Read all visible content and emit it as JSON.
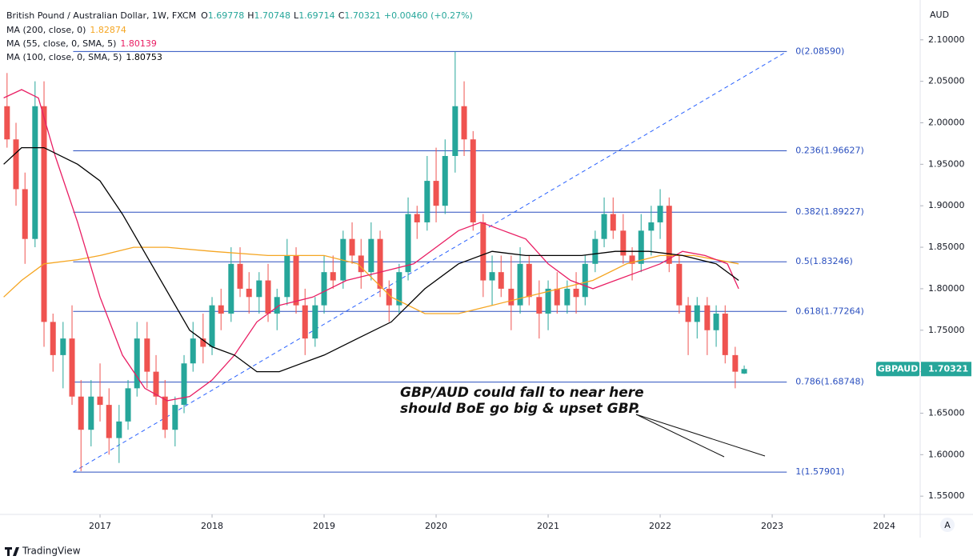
{
  "header": {
    "symbol": "British Pound / Australian Dollar, 1W, FXCM",
    "ohlc_letters": [
      "O",
      "H",
      "L",
      "C"
    ],
    "change": "+0.00460 (+0.27%)",
    "currency": "AUD"
  },
  "chart_data": {
    "type": "candlestick",
    "up_color": "#26a69a",
    "down_color": "#ef5350",
    "xlim": [
      2016.107,
      2024.321
    ],
    "xticks": [
      2017,
      2018,
      2019,
      2020,
      2021,
      2022,
      2023,
      2024
    ],
    "ylim": [
      1.528,
      2.148
    ],
    "yticks": [
      {
        "value": 1.55,
        "label": "1.55000"
      },
      {
        "value": 1.6,
        "label": "1.60000"
      },
      {
        "value": 1.65,
        "label": "1.65000"
      },
      {
        "value": 1.7,
        "label": "1.70000"
      },
      {
        "value": 1.75,
        "label": "1.75000"
      },
      {
        "value": 1.8,
        "label": "1.80000"
      },
      {
        "value": 1.85,
        "label": "1.85000"
      },
      {
        "value": 1.9,
        "label": "1.90000"
      },
      {
        "value": 1.95,
        "label": "1.95000"
      },
      {
        "value": 2.0,
        "label": "2.00000"
      },
      {
        "value": 2.05,
        "label": "2.05000"
      },
      {
        "value": 2.1,
        "label": "2.10000"
      }
    ],
    "grid": false,
    "x": [
      2016.17,
      2016.25,
      2016.33,
      2016.42,
      2016.5,
      2016.58,
      2016.67,
      2016.75,
      2016.83,
      2016.92,
      2017.0,
      2017.08,
      2017.17,
      2017.25,
      2017.33,
      2017.42,
      2017.5,
      2017.58,
      2017.67,
      2017.75,
      2017.83,
      2017.92,
      2018.0,
      2018.08,
      2018.17,
      2018.25,
      2018.33,
      2018.42,
      2018.5,
      2018.58,
      2018.67,
      2018.75,
      2018.83,
      2018.92,
      2019.0,
      2019.08,
      2019.17,
      2019.25,
      2019.33,
      2019.42,
      2019.5,
      2019.58,
      2019.67,
      2019.75,
      2019.83,
      2019.92,
      2020.0,
      2020.08,
      2020.17,
      2020.25,
      2020.33,
      2020.42,
      2020.5,
      2020.58,
      2020.67,
      2020.75,
      2020.83,
      2020.92,
      2021.0,
      2021.08,
      2021.17,
      2021.25,
      2021.33,
      2021.42,
      2021.5,
      2021.58,
      2021.67,
      2021.75,
      2021.83,
      2021.92,
      2022.0,
      2022.08,
      2022.17,
      2022.25,
      2022.33,
      2022.42,
      2022.5,
      2022.58,
      2022.67,
      2022.75
    ],
    "open": [
      2.02,
      1.98,
      1.92,
      1.86,
      2.02,
      1.76,
      1.72,
      1.74,
      1.67,
      1.63,
      1.67,
      1.66,
      1.62,
      1.64,
      1.68,
      1.74,
      1.7,
      1.67,
      1.63,
      1.66,
      1.71,
      1.74,
      1.73,
      1.78,
      1.77,
      1.83,
      1.8,
      1.79,
      1.81,
      1.77,
      1.79,
      1.84,
      1.78,
      1.74,
      1.78,
      1.82,
      1.81,
      1.86,
      1.84,
      1.82,
      1.86,
      1.8,
      1.78,
      1.82,
      1.89,
      1.88,
      1.93,
      1.9,
      1.96,
      2.02,
      1.98,
      1.88,
      1.81,
      1.82,
      1.8,
      1.78,
      1.83,
      1.79,
      1.77,
      1.8,
      1.78,
      1.8,
      1.79,
      1.83,
      1.86,
      1.89,
      1.87,
      1.84,
      1.83,
      1.87,
      1.88,
      1.9,
      1.83,
      1.78,
      1.76,
      1.78,
      1.75,
      1.77,
      1.72,
      1.69778
    ],
    "high": [
      2.06,
      2.0,
      1.94,
      2.05,
      2.05,
      1.77,
      1.76,
      1.78,
      1.69,
      1.69,
      1.71,
      1.68,
      1.66,
      1.69,
      1.76,
      1.76,
      1.72,
      1.69,
      1.67,
      1.72,
      1.76,
      1.77,
      1.79,
      1.8,
      1.85,
      1.85,
      1.82,
      1.82,
      1.83,
      1.8,
      1.86,
      1.85,
      1.8,
      1.79,
      1.84,
      1.84,
      1.87,
      1.88,
      1.86,
      1.88,
      1.87,
      1.81,
      1.83,
      1.91,
      1.9,
      1.96,
      1.97,
      1.98,
      2.0859,
      2.05,
      1.99,
      1.89,
      1.84,
      1.84,
      1.84,
      1.85,
      1.84,
      1.81,
      1.81,
      1.82,
      1.81,
      1.82,
      1.84,
      1.87,
      1.91,
      1.91,
      1.89,
      1.85,
      1.89,
      1.9,
      1.92,
      1.91,
      1.84,
      1.79,
      1.79,
      1.79,
      1.78,
      1.78,
      1.73,
      1.70748
    ],
    "low": [
      1.97,
      1.9,
      1.83,
      1.85,
      1.73,
      1.7,
      1.68,
      1.66,
      1.58,
      1.61,
      1.64,
      1.6,
      1.59,
      1.63,
      1.67,
      1.68,
      1.66,
      1.62,
      1.61,
      1.65,
      1.7,
      1.71,
      1.72,
      1.75,
      1.76,
      1.79,
      1.77,
      1.77,
      1.76,
      1.75,
      1.78,
      1.77,
      1.72,
      1.73,
      1.77,
      1.8,
      1.8,
      1.83,
      1.8,
      1.81,
      1.79,
      1.76,
      1.77,
      1.81,
      1.86,
      1.87,
      1.88,
      1.89,
      1.94,
      1.96,
      1.87,
      1.79,
      1.78,
      1.79,
      1.75,
      1.77,
      1.78,
      1.74,
      1.75,
      1.77,
      1.77,
      1.77,
      1.78,
      1.82,
      1.85,
      1.86,
      1.83,
      1.81,
      1.82,
      1.84,
      1.86,
      1.82,
      1.77,
      1.72,
      1.74,
      1.72,
      1.73,
      1.71,
      1.68,
      1.69714
    ],
    "close": [
      1.98,
      1.92,
      1.86,
      2.02,
      1.76,
      1.72,
      1.74,
      1.67,
      1.63,
      1.67,
      1.66,
      1.62,
      1.64,
      1.68,
      1.74,
      1.7,
      1.67,
      1.63,
      1.66,
      1.71,
      1.74,
      1.73,
      1.78,
      1.77,
      1.83,
      1.8,
      1.79,
      1.81,
      1.77,
      1.79,
      1.84,
      1.78,
      1.74,
      1.78,
      1.82,
      1.81,
      1.86,
      1.84,
      1.82,
      1.86,
      1.8,
      1.78,
      1.82,
      1.89,
      1.88,
      1.93,
      1.9,
      1.96,
      2.02,
      1.98,
      1.88,
      1.81,
      1.82,
      1.8,
      1.78,
      1.83,
      1.79,
      1.77,
      1.8,
      1.78,
      1.8,
      1.79,
      1.83,
      1.86,
      1.89,
      1.87,
      1.84,
      1.83,
      1.87,
      1.88,
      1.9,
      1.83,
      1.78,
      1.76,
      1.78,
      1.75,
      1.77,
      1.72,
      1.7,
      1.70321
    ],
    "price_tag_label": "GBPAUD",
    "series": [
      {
        "name": "MA (200, close, 0)",
        "color": "#f5a623",
        "last_value": 1.82874,
        "x": [
          2016.14,
          2016.3,
          2016.5,
          2016.8,
          2017.0,
          2017.3,
          2017.6,
          2018.0,
          2018.5,
          2019.0,
          2019.3,
          2019.6,
          2019.9,
          2020.2,
          2020.5,
          2020.8,
          2021.1,
          2021.4,
          2021.7,
          2022.0,
          2022.3,
          2022.7
        ],
        "values": [
          1.79,
          1.81,
          1.83,
          1.835,
          1.84,
          1.85,
          1.85,
          1.845,
          1.84,
          1.84,
          1.83,
          1.79,
          1.77,
          1.77,
          1.78,
          1.79,
          1.8,
          1.81,
          1.83,
          1.84,
          1.84,
          1.83
        ]
      },
      {
        "name": "MA (55, close, 0, SMA, 5)",
        "color": "#e91e63",
        "last_value": 1.80139,
        "x": [
          2016.14,
          2016.3,
          2016.45,
          2016.6,
          2016.8,
          2017.0,
          2017.2,
          2017.4,
          2017.6,
          2017.8,
          2018.0,
          2018.2,
          2018.4,
          2018.6,
          2018.9,
          2019.2,
          2019.5,
          2019.8,
          2020.0,
          2020.2,
          2020.4,
          2020.6,
          2020.8,
          2021.0,
          2021.2,
          2021.4,
          2021.6,
          2021.8,
          2022.0,
          2022.2,
          2022.4,
          2022.6,
          2022.7
        ],
        "values": [
          2.03,
          2.04,
          2.03,
          1.96,
          1.88,
          1.79,
          1.72,
          1.68,
          1.665,
          1.67,
          1.69,
          1.72,
          1.76,
          1.78,
          1.79,
          1.81,
          1.82,
          1.83,
          1.85,
          1.87,
          1.88,
          1.87,
          1.86,
          1.83,
          1.81,
          1.8,
          1.81,
          1.82,
          1.83,
          1.845,
          1.84,
          1.83,
          1.8
        ]
      },
      {
        "name": "MA (100, close, 0, SMA, 5)",
        "color": "#000000",
        "last_value": 1.80753,
        "x": [
          2016.14,
          2016.3,
          2016.5,
          2016.8,
          2017.0,
          2017.2,
          2017.5,
          2017.8,
          2018.0,
          2018.2,
          2018.4,
          2018.6,
          2018.8,
          2019.0,
          2019.3,
          2019.6,
          2019.9,
          2020.2,
          2020.5,
          2020.8,
          2021.0,
          2021.3,
          2021.6,
          2021.9,
          2022.2,
          2022.5,
          2022.7
        ],
        "values": [
          1.95,
          1.97,
          1.97,
          1.95,
          1.93,
          1.89,
          1.82,
          1.75,
          1.73,
          1.72,
          1.7,
          1.7,
          1.71,
          1.72,
          1.74,
          1.76,
          1.8,
          1.83,
          1.845,
          1.84,
          1.84,
          1.84,
          1.845,
          1.845,
          1.84,
          1.83,
          1.81
        ]
      }
    ],
    "fib": {
      "color": "#2a4fbf",
      "x": [
        2016.76,
        2023.13
      ],
      "levels": [
        {
          "value": 2.0859,
          "label": "0(2.08590)"
        },
        {
          "value": 1.96627,
          "label": "0.236(1.96627)"
        },
        {
          "value": 1.89227,
          "label": "0.382(1.89227)"
        },
        {
          "value": 1.83246,
          "label": "0.5(1.83246)"
        },
        {
          "value": 1.77264,
          "label": "0.618(1.77264)"
        },
        {
          "value": 1.68748,
          "label": "0.786(1.68748)"
        },
        {
          "value": 1.57901,
          "label": "1(1.57901)"
        }
      ]
    },
    "trend_line": {
      "color": "#2a62ff",
      "x": [
        2016.76,
        2023.13
      ],
      "values": [
        1.57901,
        2.0859
      ]
    },
    "annotation": [
      "GBP/AUD could fall to near here",
      "should BoE go big & upset GBP."
    ]
  },
  "footer": {
    "brand": "TradingView",
    "scale_button": "A"
  }
}
